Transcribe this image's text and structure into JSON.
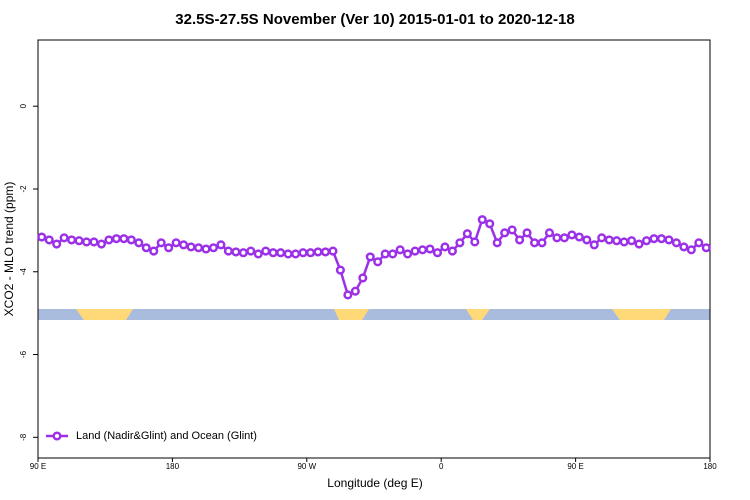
{
  "chart_data": {
    "type": "line",
    "title": "32.5S-27.5S November (Ver 10)   2015-01-01 to 2020-12-18",
    "x_label": "Longitude (deg E)",
    "y_label": "XCO2 - MLO trend (ppm)",
    "xlim": [
      90,
      540
    ],
    "xticks": [
      {
        "value": 90,
        "label": "90 E"
      },
      180,
      {
        "value": 270,
        "label": "90 W"
      },
      {
        "value": 360,
        "label": "0"
      },
      {
        "value": 450,
        "label": "90 E"
      },
      {
        "value": 540,
        "label": "180"
      }
    ],
    "ylim": [
      -8.5,
      1.6
    ],
    "yticks": [
      0,
      -2,
      -4,
      -6,
      -8
    ],
    "grid": false,
    "legend": "bottom-left",
    "x": [
      92.5,
      97.5,
      102.5,
      107.5,
      112.5,
      117.5,
      122.5,
      127.5,
      132.5,
      137.5,
      142.5,
      147.5,
      152.5,
      157.5,
      162.5,
      167.5,
      172.5,
      177.5,
      182.5,
      187.5,
      192.5,
      197.5,
      202.5,
      207.5,
      212.5,
      217.5,
      222.5,
      227.5,
      232.5,
      237.5,
      242.5,
      247.5,
      252.5,
      257.5,
      262.5,
      267.5,
      272.5,
      277.5,
      282.5,
      287.5,
      292.5,
      297.5,
      302.5,
      307.5,
      312.5,
      317.5,
      322.5,
      327.5,
      332.5,
      337.5,
      342.5,
      347.5,
      352.5,
      357.5,
      362.5,
      367.5,
      372.5,
      377.5,
      382.5,
      387.5,
      392.5,
      397.5,
      402.5,
      407.5,
      412.5,
      417.5,
      422.5,
      427.5,
      432.5,
      437.5,
      442.5,
      447.5,
      452.5,
      457.5,
      462.5,
      467.5,
      472.5,
      477.5,
      482.5,
      487.5,
      492.5,
      497.5,
      502.5,
      507.5,
      512.5,
      517.5,
      522.5,
      527.5,
      532.5,
      537.5
    ],
    "series": [
      {
        "name": "Land (Nadir&Glint) and Ocean (Glint)",
        "color": "#9b30e8",
        "values": [
          -3.16,
          -3.23,
          -3.33,
          -3.18,
          -3.23,
          -3.25,
          -3.28,
          -3.28,
          -3.33,
          -3.23,
          -3.2,
          -3.2,
          -3.23,
          -3.3,
          -3.42,
          -3.5,
          -3.3,
          -3.42,
          -3.3,
          -3.35,
          -3.4,
          -3.42,
          -3.45,
          -3.42,
          -3.35,
          -3.5,
          -3.52,
          -3.54,
          -3.5,
          -3.57,
          -3.5,
          -3.54,
          -3.54,
          -3.57,
          -3.57,
          -3.54,
          -3.54,
          -3.52,
          -3.52,
          -3.5,
          -3.96,
          -4.56,
          -4.47,
          -4.15,
          -3.64,
          -3.76,
          -3.57,
          -3.57,
          -3.47,
          -3.57,
          -3.5,
          -3.47,
          -3.45,
          -3.54,
          -3.4,
          -3.5,
          -3.3,
          -3.08,
          -3.28,
          -2.74,
          -2.84,
          -3.3,
          -3.06,
          -2.99,
          -3.23,
          -3.06,
          -3.3,
          -3.3,
          -3.06,
          -3.18,
          -3.18,
          -3.11,
          -3.16,
          -3.23,
          -3.35,
          -3.18,
          -3.23,
          -3.25,
          -3.28,
          -3.25,
          -3.33,
          -3.25,
          -3.2,
          -3.2,
          -3.23,
          -3.3,
          -3.4,
          -3.47,
          -3.3,
          -3.42
        ]
      }
    ]
  }
}
